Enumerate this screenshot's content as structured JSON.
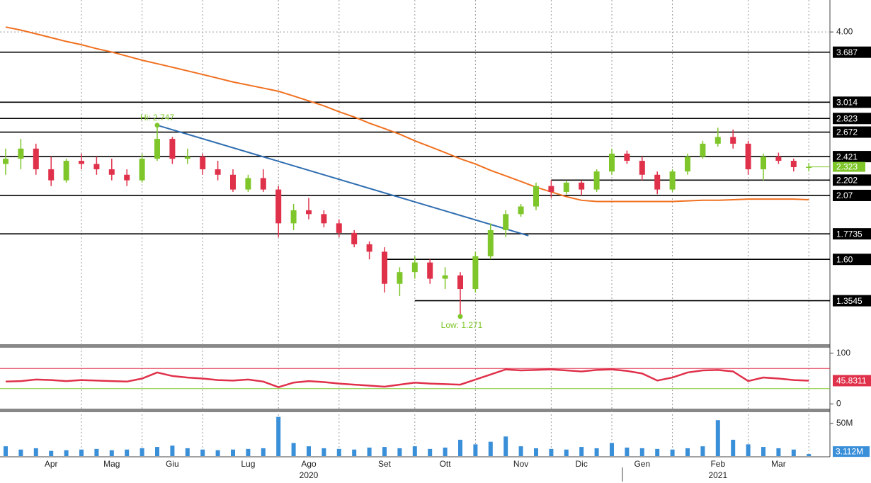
{
  "chart_data": {
    "type": "candlestick",
    "categories": [
      null,
      null,
      null,
      "Apr",
      null,
      null,
      null,
      "Mag",
      null,
      null,
      null,
      "Giu",
      null,
      null,
      null,
      null,
      "Lug",
      null,
      null,
      null,
      "Ago",
      null,
      null,
      null,
      null,
      "Set",
      null,
      null,
      null,
      "Ott",
      null,
      null,
      null,
      null,
      "Nov",
      null,
      null,
      null,
      "Dic",
      null,
      null,
      null,
      "Gen",
      null,
      null,
      null,
      null,
      "Feb",
      null,
      null,
      null,
      "Mar",
      null,
      null
    ],
    "years": [
      "2020",
      "2021"
    ],
    "open": [
      2.35,
      2.4,
      2.5,
      2.3,
      2.2,
      2.38,
      2.35,
      2.3,
      2.25,
      2.2,
      2.4,
      2.6,
      2.4,
      2.42,
      2.3,
      2.25,
      2.12,
      2.22,
      2.12,
      1.85,
      1.95,
      1.92,
      1.85,
      1.78,
      1.7,
      1.65,
      1.45,
      1.52,
      1.58,
      1.48,
      1.5,
      1.42,
      1.62,
      1.8,
      1.92,
      1.98,
      2.15,
      2.1,
      2.18,
      2.12,
      2.28,
      2.45,
      2.38,
      2.25,
      2.12,
      2.28,
      2.42,
      2.55,
      2.62,
      2.55,
      2.3,
      2.42,
      2.38,
      2.32
    ],
    "high": [
      2.5,
      2.6,
      2.55,
      2.42,
      2.4,
      2.45,
      2.42,
      2.4,
      2.3,
      2.45,
      2.747,
      2.62,
      2.5,
      2.45,
      2.38,
      2.3,
      2.25,
      2.3,
      2.15,
      2.0,
      2.05,
      1.95,
      1.88,
      1.8,
      1.72,
      1.68,
      1.55,
      1.62,
      1.6,
      1.55,
      1.52,
      1.65,
      1.85,
      1.95,
      2.0,
      2.18,
      2.2,
      2.2,
      2.2,
      2.3,
      2.5,
      2.48,
      2.42,
      2.28,
      2.3,
      2.45,
      2.58,
      2.72,
      2.7,
      2.58,
      2.45,
      2.46,
      2.4,
      2.36
    ],
    "low": [
      2.25,
      2.3,
      2.25,
      2.15,
      2.18,
      2.3,
      2.25,
      2.2,
      2.15,
      2.18,
      2.38,
      2.35,
      2.35,
      2.25,
      2.2,
      2.1,
      2.1,
      2.1,
      1.75,
      1.8,
      1.88,
      1.82,
      1.75,
      1.68,
      1.6,
      1.4,
      1.38,
      1.48,
      1.45,
      1.42,
      1.271,
      1.4,
      1.6,
      1.75,
      1.9,
      1.95,
      2.05,
      2.08,
      2.07,
      2.1,
      2.25,
      2.35,
      2.2,
      2.08,
      2.1,
      2.25,
      2.4,
      2.52,
      2.5,
      2.25,
      2.2,
      2.35,
      2.28,
      2.28
    ],
    "close": [
      2.4,
      2.5,
      2.3,
      2.2,
      2.38,
      2.35,
      2.3,
      2.25,
      2.2,
      2.4,
      2.6,
      2.4,
      2.42,
      2.3,
      2.25,
      2.12,
      2.22,
      2.12,
      1.85,
      1.95,
      1.92,
      1.85,
      1.78,
      1.7,
      1.65,
      1.45,
      1.52,
      1.58,
      1.48,
      1.5,
      1.42,
      1.62,
      1.8,
      1.92,
      1.98,
      2.15,
      2.1,
      2.18,
      2.12,
      2.28,
      2.45,
      2.38,
      2.25,
      2.12,
      2.28,
      2.42,
      2.55,
      2.62,
      2.55,
      2.3,
      2.42,
      2.38,
      2.32,
      2.323
    ],
    "up_color": "#7ec62a",
    "down_color": "#e0314b",
    "log_scale": true,
    "ylim": [
      1.14,
      4.55
    ],
    "yticks": [
      {
        "value": 4,
        "label": "4.00"
      }
    ],
    "levels": [
      3.687,
      3.014,
      2.823,
      2.672,
      2.421,
      2.202,
      2.07,
      1.7735,
      {
        "value": 1.6,
        "label": "1.60"
      },
      1.3545
    ],
    "moving_average": {
      "color": "#f07020",
      "values": [
        4.08,
        4.03,
        3.97,
        3.91,
        3.85,
        3.8,
        3.74,
        3.69,
        3.63,
        3.57,
        3.52,
        3.47,
        3.42,
        3.37,
        3.32,
        3.27,
        3.23,
        3.19,
        3.15,
        3.09,
        3.03,
        2.97,
        2.9,
        2.84,
        2.77,
        2.71,
        2.65,
        2.58,
        2.52,
        2.46,
        2.4,
        2.35,
        2.29,
        2.24,
        2.19,
        2.14,
        2.1,
        2.06,
        2.03,
        2.02,
        2.02,
        2.02,
        2.02,
        2.02,
        2.02,
        2.025,
        2.03,
        2.03,
        2.035,
        2.04,
        2.04,
        2.04,
        2.04,
        2.035
      ]
    },
    "trendline": {
      "color": "#2f6db0",
      "values": [
        2.747,
        1.76
      ]
    },
    "annotations": {
      "high": {
        "label": "Hi: 2.747",
        "value": 2.747
      },
      "low": {
        "label": "Low: 1.271",
        "value": 1.271
      }
    },
    "rsi": {
      "color": "#e0314b",
      "ylim": [
        -8,
        108
      ],
      "yticks": [
        0,
        100
      ],
      "overbought": 70,
      "oversold": 30,
      "values": [
        44,
        45,
        48,
        47,
        45,
        47,
        46,
        45,
        44,
        50,
        62,
        55,
        52,
        50,
        47,
        46,
        48,
        44,
        33,
        42,
        45,
        43,
        40,
        38,
        36,
        34,
        38,
        42,
        40,
        39,
        38,
        48,
        58,
        68,
        66,
        67,
        68,
        66,
        64,
        67,
        68,
        65,
        60,
        46,
        52,
        62,
        66,
        67,
        64,
        45,
        52,
        50,
        47,
        45.8311
      ]
    },
    "volume": {
      "color": "#3a8fd9",
      "ylim": [
        0,
        65000000
      ],
      "yticks": [
        {
          "value": 50000000,
          "label": "50M"
        }
      ],
      "last_value_label": "3.112M",
      "values": [
        15000000,
        10000000,
        12000000,
        8000000,
        9000000,
        10000000,
        11000000,
        9000000,
        10000000,
        12000000,
        14000000,
        16000000,
        12000000,
        10000000,
        9000000,
        10000000,
        11000000,
        12000000,
        60000000,
        20000000,
        15000000,
        12000000,
        11000000,
        10000000,
        13000000,
        14000000,
        12000000,
        15000000,
        11000000,
        13000000,
        25000000,
        18000000,
        22000000,
        30000000,
        15000000,
        12000000,
        11000000,
        10000000,
        14000000,
        12000000,
        20000000,
        13000000,
        12000000,
        11000000,
        10000000,
        12000000,
        15000000,
        55000000,
        25000000,
        18000000,
        14000000,
        12000000,
        10000000,
        3112000
      ]
    }
  }
}
